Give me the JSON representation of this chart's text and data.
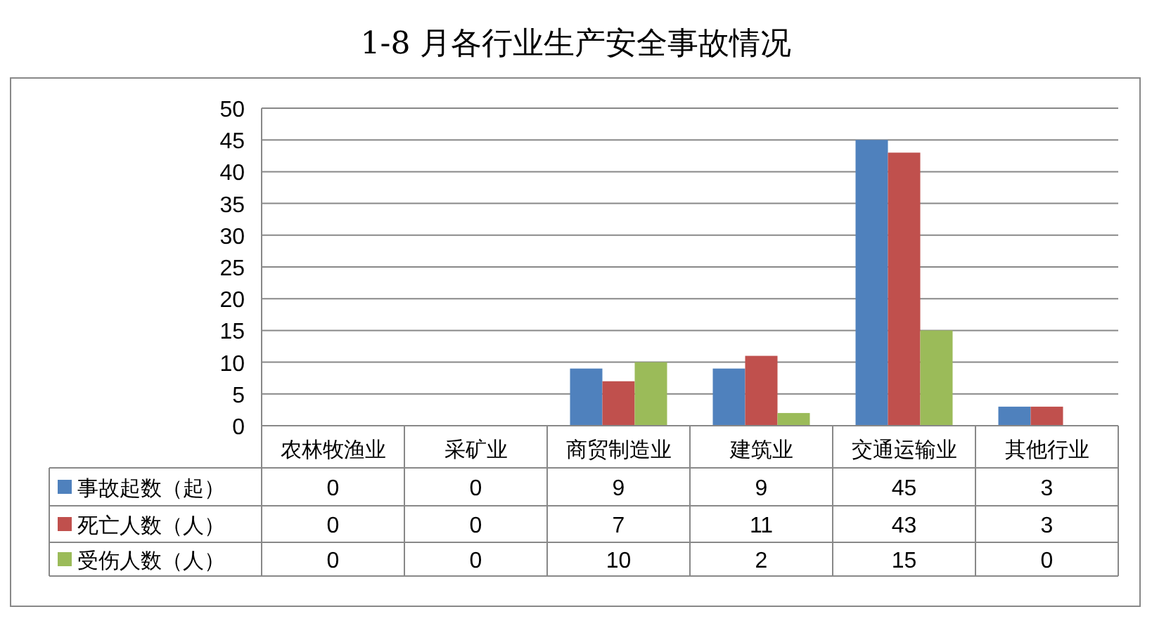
{
  "chart_data": {
    "type": "bar",
    "title": "1-8 月各行业生产安全事故情况",
    "categories": [
      "农林牧渔业",
      "采矿业",
      "商贸制造业",
      "建筑业",
      "交通运输业",
      "其他行业"
    ],
    "series": [
      {
        "name": "事故起数（起）",
        "color": "#4f81bd",
        "values": [
          0,
          0,
          9,
          9,
          45,
          3
        ]
      },
      {
        "name": "死亡人数（人）",
        "color": "#c0504d",
        "values": [
          0,
          0,
          7,
          11,
          43,
          3
        ]
      },
      {
        "name": "受伤人数（人）",
        "color": "#9bbb59",
        "values": [
          0,
          0,
          10,
          2,
          15,
          0
        ]
      }
    ],
    "ylim": [
      0,
      50
    ],
    "yticks": [
      0,
      5,
      10,
      15,
      20,
      25,
      30,
      35,
      40,
      45,
      50
    ],
    "grid": "y",
    "legend": "bottom",
    "data_labels": true
  }
}
